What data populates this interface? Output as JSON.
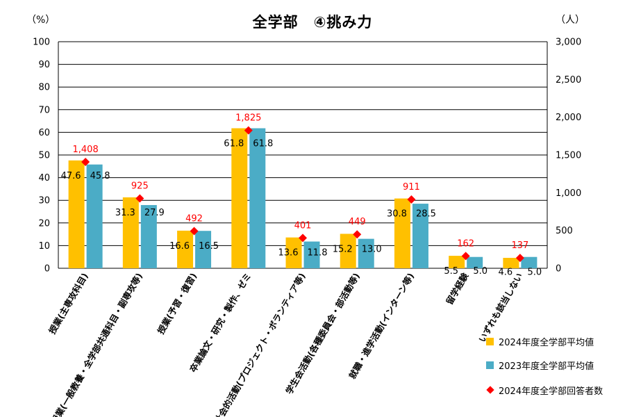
{
  "title": "全学部　④挑み力",
  "left_unit": "（%）",
  "right_unit": "（人）",
  "colors": {
    "bar_2024": "#FFC000",
    "bar_2023": "#4BACC6",
    "marker": "#FF0000",
    "marker_label": "#FF0000",
    "grid": "#000000"
  },
  "legend": {
    "items": [
      {
        "label": "2024年度全学部平均値",
        "symbol": "square",
        "color": "#FFC000"
      },
      {
        "label": "2023年度全学部平均値",
        "symbol": "square",
        "color": "#4BACC6"
      },
      {
        "label": "2024年度全学部回答者数",
        "symbol": "diamond",
        "color": "#FF0000"
      }
    ]
  },
  "chart_data": {
    "type": "bar",
    "title": "全学部　④挑み力",
    "categories": [
      "授業(主専攻科目)",
      "授業(一般教養・全学部共通科目・副専攻等)",
      "授業(予習・復習)",
      "卒業論文・研究・製作、ゼミ",
      "社会的活動(プロジェクト・ボランティア等)",
      "学生会活動(各種委員会・部活動等)",
      "就職・進学活動(インターン等)",
      "留学経験",
      "いずれも該当しない"
    ],
    "series": [
      {
        "name": "2024年度全学部平均値",
        "type": "bar",
        "axis": "left",
        "values": [
          47.6,
          31.3,
          16.6,
          61.8,
          13.6,
          15.2,
          30.8,
          5.5,
          4.6
        ],
        "labels": [
          "47.6",
          "31.3",
          "16.6",
          "61.8",
          "13.6",
          "15.2",
          "30.8",
          "5.5",
          "4.6"
        ]
      },
      {
        "name": "2023年度全学部平均値",
        "type": "bar",
        "axis": "right_of_pair",
        "values": [
          45.8,
          27.9,
          16.5,
          61.8,
          11.8,
          13.0,
          28.5,
          5.0,
          5.0
        ],
        "labels": [
          "45.8",
          "27.9",
          "16.5",
          "61.8",
          "11.8",
          "13.0",
          "28.5",
          "5.0",
          "5.0"
        ]
      },
      {
        "name": "2024年度全学部回答者数",
        "type": "scatter",
        "axis": "right",
        "values": [
          1408,
          925,
          492,
          1825,
          401,
          449,
          911,
          162,
          137
        ],
        "labels": [
          "1,408",
          "925",
          "492",
          "1,825",
          "401",
          "449",
          "911",
          "162",
          "137"
        ]
      }
    ],
    "y_left": {
      "min": 0,
      "max": 100,
      "step": 10,
      "ticks": [
        "0",
        "10",
        "20",
        "30",
        "40",
        "50",
        "60",
        "70",
        "80",
        "90",
        "100"
      ]
    },
    "y_right": {
      "min": 0,
      "max": 3000,
      "step": 500,
      "ticks": [
        "0",
        "500",
        "1,000",
        "1,500",
        "2,000",
        "2,500",
        "3,000"
      ]
    },
    "grid": true,
    "legend_position": "bottom-right"
  }
}
